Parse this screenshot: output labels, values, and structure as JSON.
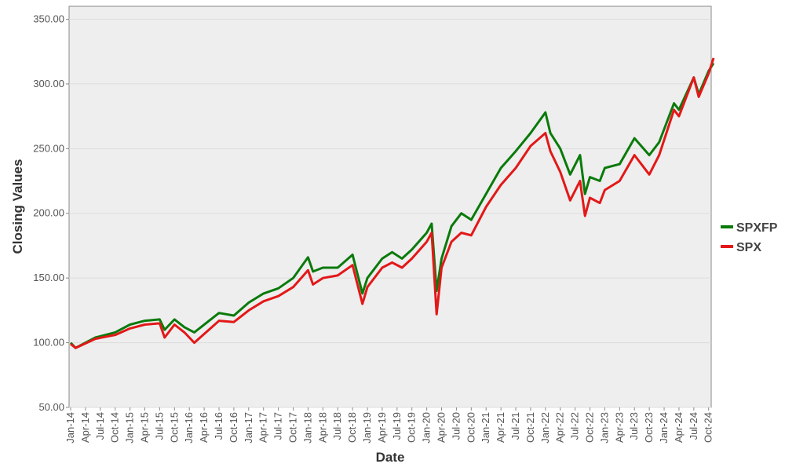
{
  "chart_data": {
    "type": "line",
    "title": "",
    "xlabel": "Date",
    "ylabel": "Closing Values",
    "ylim": [
      50,
      360
    ],
    "y_ticks": [
      "50.00",
      "100.00",
      "150.00",
      "200.00",
      "250.00",
      "300.00",
      "350.00"
    ],
    "x_ticks": [
      "Jan-14",
      "Apr-14",
      "Jul-14",
      "Oct-14",
      "Jan-15",
      "Apr-15",
      "Jul-15",
      "Oct-15",
      "Jan-16",
      "Apr-16",
      "Jul-16",
      "Oct-16",
      "Jan-17",
      "Apr-17",
      "Jul-17",
      "Oct-17",
      "Jan-18",
      "Apr-18",
      "Jul-18",
      "Oct-18",
      "Jan-19",
      "Apr-19",
      "Jul-19",
      "Oct-19",
      "Jan-20",
      "Apr-20",
      "Jul-20",
      "Oct-20",
      "Jan-21",
      "Apr-21",
      "Jul-21",
      "Oct-21",
      "Jan-22",
      "Apr-22",
      "Jul-22",
      "Oct-22",
      "Jan-23",
      "Apr-23",
      "Jul-23",
      "Oct-23",
      "Jan-24",
      "Apr-24",
      "Jul-24",
      "Oct-24"
    ],
    "grid": "horizontal",
    "legend_position": "right",
    "background": "#eeeeee",
    "series": [
      {
        "name": "SPXFP",
        "color": "#0a7a0a",
        "x": [
          "Jan-14",
          "Feb-14",
          "Jun-14",
          "Oct-14",
          "Jan-15",
          "Apr-15",
          "Jul-15",
          "Aug-15",
          "Oct-15",
          "Dec-15",
          "Feb-16",
          "Jul-16",
          "Oct-16",
          "Jan-17",
          "Apr-17",
          "Jul-17",
          "Oct-17",
          "Jan-18",
          "Feb-18",
          "Apr-18",
          "Jul-18",
          "Oct-18",
          "Dec-18",
          "Jan-19",
          "Apr-19",
          "Jun-19",
          "Aug-19",
          "Oct-19",
          "Jan-20",
          "Feb-20",
          "Mar-20",
          "Apr-20",
          "Jun-20",
          "Aug-20",
          "Oct-20",
          "Jan-21",
          "Apr-21",
          "Jul-21",
          "Oct-21",
          "Jan-22",
          "Feb-22",
          "Apr-22",
          "Jun-22",
          "Aug-22",
          "Sep-22",
          "Oct-22",
          "Dec-22",
          "Jan-23",
          "Apr-23",
          "Jul-23",
          "Oct-23",
          "Dec-23",
          "Mar-24",
          "Apr-24",
          "Jul-24",
          "Aug-24",
          "Oct-24",
          "Nov-24"
        ],
        "values": [
          100,
          96,
          104,
          108,
          114,
          117,
          118,
          110,
          118,
          112,
          108,
          123,
          121,
          131,
          138,
          142,
          150,
          166,
          155,
          158,
          158,
          168,
          138,
          150,
          165,
          170,
          165,
          172,
          185,
          192,
          140,
          165,
          190,
          200,
          195,
          215,
          235,
          248,
          262,
          278,
          262,
          250,
          230,
          245,
          215,
          228,
          225,
          235,
          238,
          258,
          245,
          255,
          285,
          280,
          305,
          292,
          310,
          316
        ]
      },
      {
        "name": "SPX",
        "color": "#e31818",
        "x": [
          "Jan-14",
          "Feb-14",
          "Jun-14",
          "Oct-14",
          "Jan-15",
          "Apr-15",
          "Jul-15",
          "Aug-15",
          "Oct-15",
          "Dec-15",
          "Feb-16",
          "Jul-16",
          "Oct-16",
          "Jan-17",
          "Apr-17",
          "Jul-17",
          "Oct-17",
          "Jan-18",
          "Feb-18",
          "Apr-18",
          "Jul-18",
          "Oct-18",
          "Dec-18",
          "Jan-19",
          "Apr-19",
          "Jun-19",
          "Aug-19",
          "Oct-19",
          "Jan-20",
          "Feb-20",
          "Mar-20",
          "Apr-20",
          "Jun-20",
          "Aug-20",
          "Oct-20",
          "Jan-21",
          "Apr-21",
          "Jul-21",
          "Oct-21",
          "Jan-22",
          "Feb-22",
          "Apr-22",
          "Jun-22",
          "Aug-22",
          "Sep-22",
          "Oct-22",
          "Dec-22",
          "Jan-23",
          "Apr-23",
          "Jul-23",
          "Oct-23",
          "Dec-23",
          "Mar-24",
          "Apr-24",
          "Jul-24",
          "Aug-24",
          "Oct-24",
          "Nov-24"
        ],
        "values": [
          99,
          96,
          103,
          106,
          111,
          114,
          115,
          104,
          114,
          108,
          100,
          117,
          116,
          125,
          132,
          136,
          143,
          156,
          145,
          150,
          152,
          160,
          130,
          143,
          158,
          162,
          158,
          165,
          178,
          185,
          122,
          158,
          178,
          185,
          183,
          205,
          222,
          235,
          252,
          262,
          248,
          232,
          210,
          225,
          198,
          212,
          208,
          218,
          225,
          245,
          230,
          245,
          280,
          275,
          305,
          290,
          308,
          320
        ]
      }
    ]
  }
}
